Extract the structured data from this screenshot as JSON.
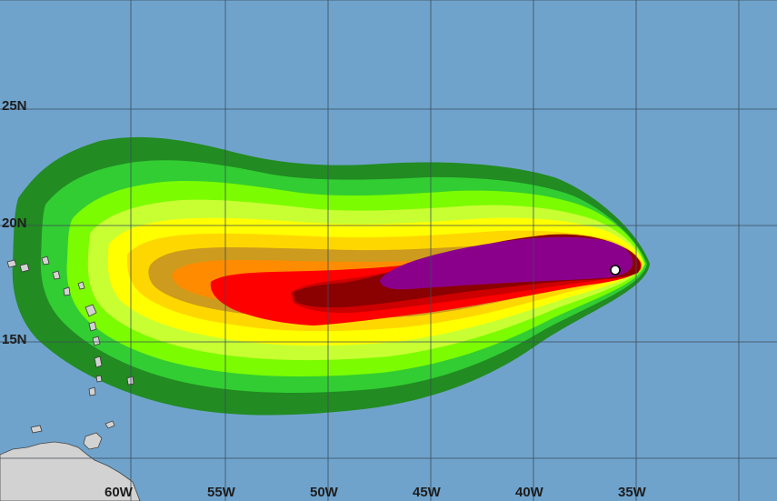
{
  "map": {
    "ocean_color": "#6fa3cc",
    "land_color": "#d2d2d2",
    "grid_color": "#3d4d5a",
    "lat_labels": [
      "25N",
      "20N",
      "15N"
    ],
    "lon_labels": [
      "60W",
      "55W",
      "50W",
      "45W",
      "40W",
      "35W"
    ],
    "bands": [
      {
        "name": "band-1",
        "color": "#228b22"
      },
      {
        "name": "band-2",
        "color": "#32cd32"
      },
      {
        "name": "band-3",
        "color": "#7cfc00"
      },
      {
        "name": "band-4",
        "color": "#c8ff33"
      },
      {
        "name": "band-5",
        "color": "#ffff00"
      },
      {
        "name": "band-6",
        "color": "#ffd700"
      },
      {
        "name": "band-7",
        "color": "#cd9b1d"
      },
      {
        "name": "band-8",
        "color": "#ff8c00"
      },
      {
        "name": "band-9",
        "color": "#ff0000"
      },
      {
        "name": "band-10",
        "color": "#cc0000"
      },
      {
        "name": "band-11",
        "color": "#8b0000"
      },
      {
        "name": "band-12",
        "color": "#8b008b"
      }
    ],
    "storm_marker": {
      "lat": 18.4,
      "lon": -36.1,
      "color": "#ffffff"
    }
  }
}
